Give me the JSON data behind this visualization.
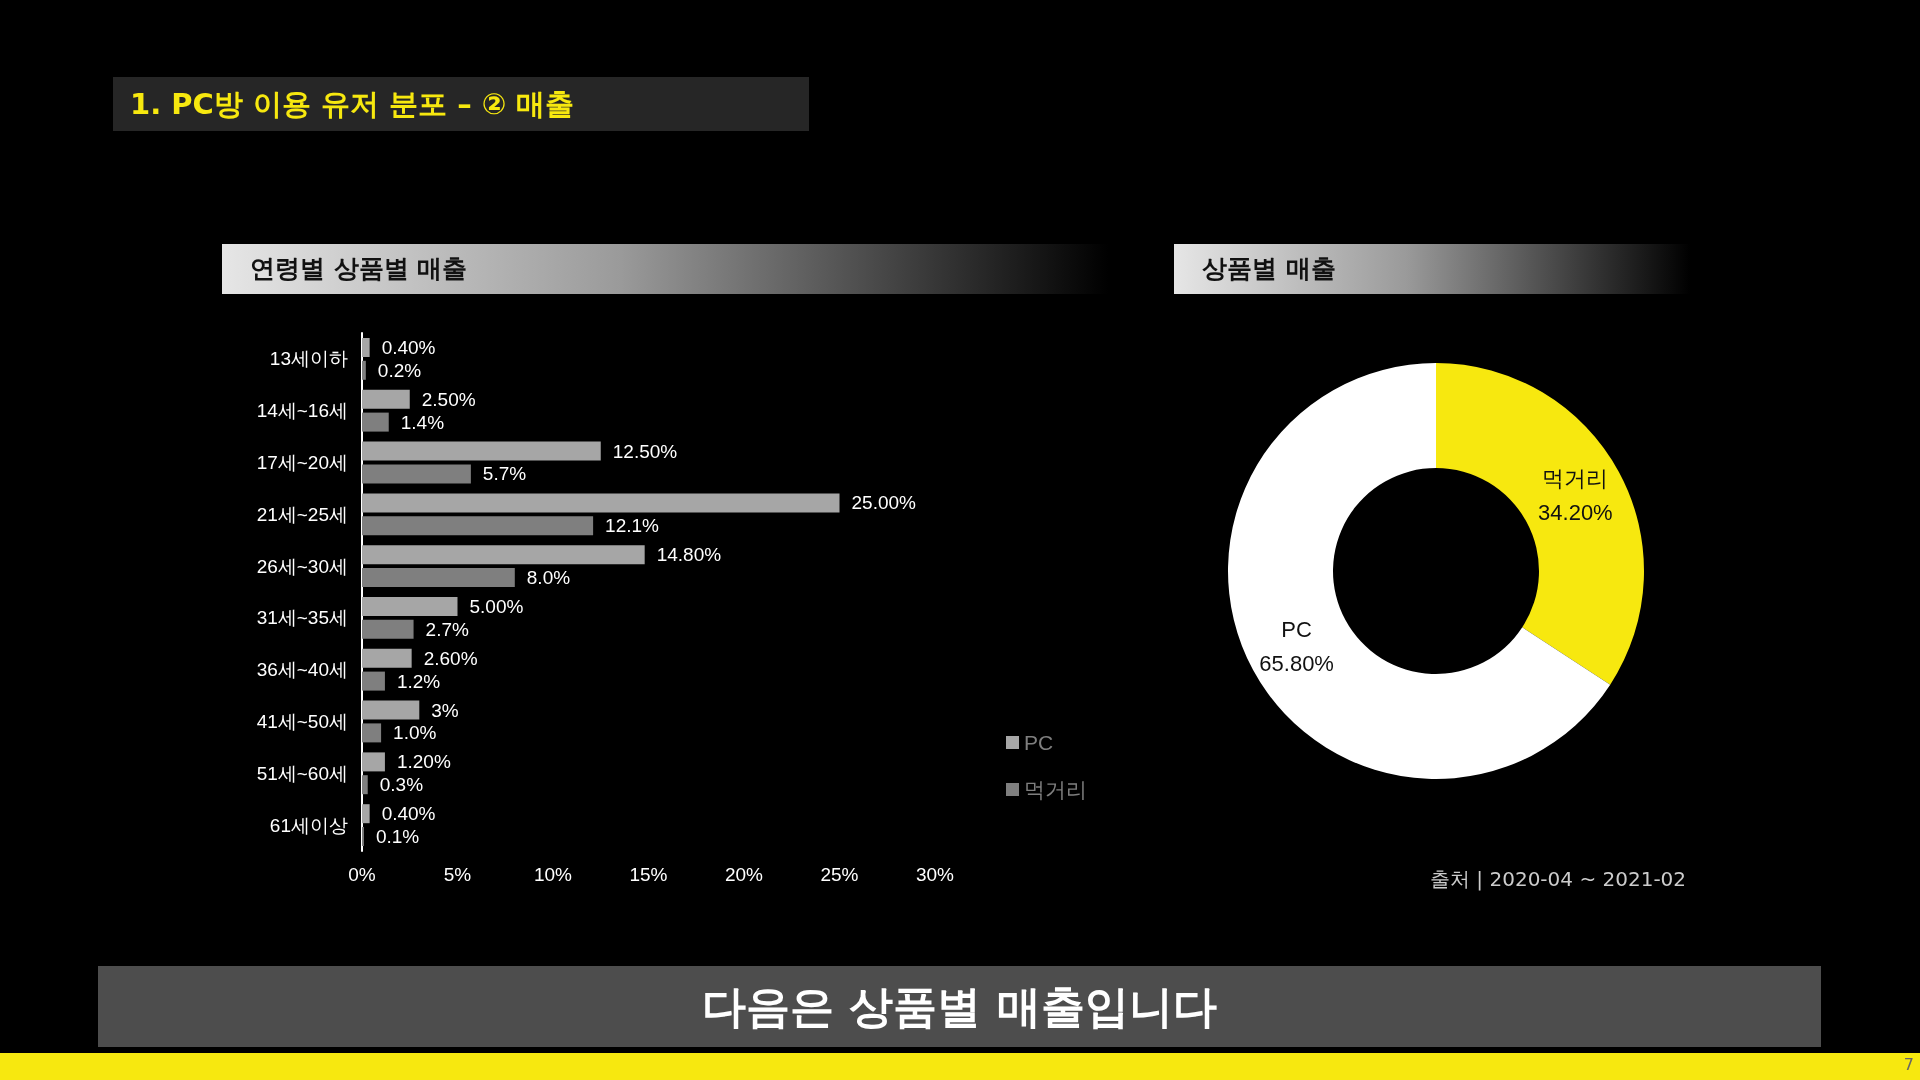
{
  "chart_data": [
    {
      "type": "bar",
      "orientation": "horizontal",
      "title": "연령별 상품별 매출",
      "annotations": [
        "1. PC방 이용 유저 분포 – ② 매출",
        "다음은 상품별 매출입니다",
        "7"
      ],
      "categories": [
        "13세이하",
        "14세~16세",
        "17세~20세",
        "21세~25세",
        "26세~30세",
        "31세~35세",
        "36세~40세",
        "41세~50세",
        "51세~60세",
        "61세이상"
      ],
      "series": [
        {
          "name": "PC",
          "color": "#a6a6a6",
          "values": [
            0.4,
            2.5,
            12.5,
            25,
            14.8,
            5,
            2.6,
            3,
            1.2,
            0.4
          ],
          "value_labels": [
            "0.40%",
            "2.50%",
            "12.50%",
            "25.00%",
            "14.80%",
            "5.00%",
            "2.60%",
            "3%",
            "1.20%",
            "0.40%"
          ]
        },
        {
          "name": "먹거리",
          "color": "#7f7f7f",
          "values": [
            0.2,
            1.4,
            5.7,
            12.1,
            8.0,
            2.7,
            1.2,
            1.0,
            0.3,
            0.1
          ],
          "value_labels": [
            "0.2%",
            "1.4%",
            "5.7%",
            "12.1%",
            "8.0%",
            "2.7%",
            "1.2%",
            "1.0%",
            "0.3%",
            "0.1%"
          ]
        }
      ],
      "xlim": [
        0,
        30
      ],
      "xticks": [
        {
          "value": 0,
          "label": "0%"
        },
        {
          "value": 5,
          "label": "5%"
        },
        {
          "value": 10,
          "label": "10%"
        },
        {
          "value": 15,
          "label": "15%"
        },
        {
          "value": 20,
          "label": "20%"
        },
        {
          "value": 25,
          "label": "25%"
        },
        {
          "value": 30,
          "label": "30%"
        }
      ],
      "grid": false,
      "legend": "bottom right"
    },
    {
      "type": "donut",
      "title": "상품별 매출",
      "annotations": [
        "출처 | 2020-04 ~ 2021-02"
      ],
      "categories": [
        "먹거리",
        "PC"
      ],
      "values": [
        34.2,
        65.8
      ],
      "colors": [
        "#f7e80f",
        "#ffffff"
      ],
      "value_labels": [
        "34.20%",
        "65.80%"
      ]
    }
  ]
}
